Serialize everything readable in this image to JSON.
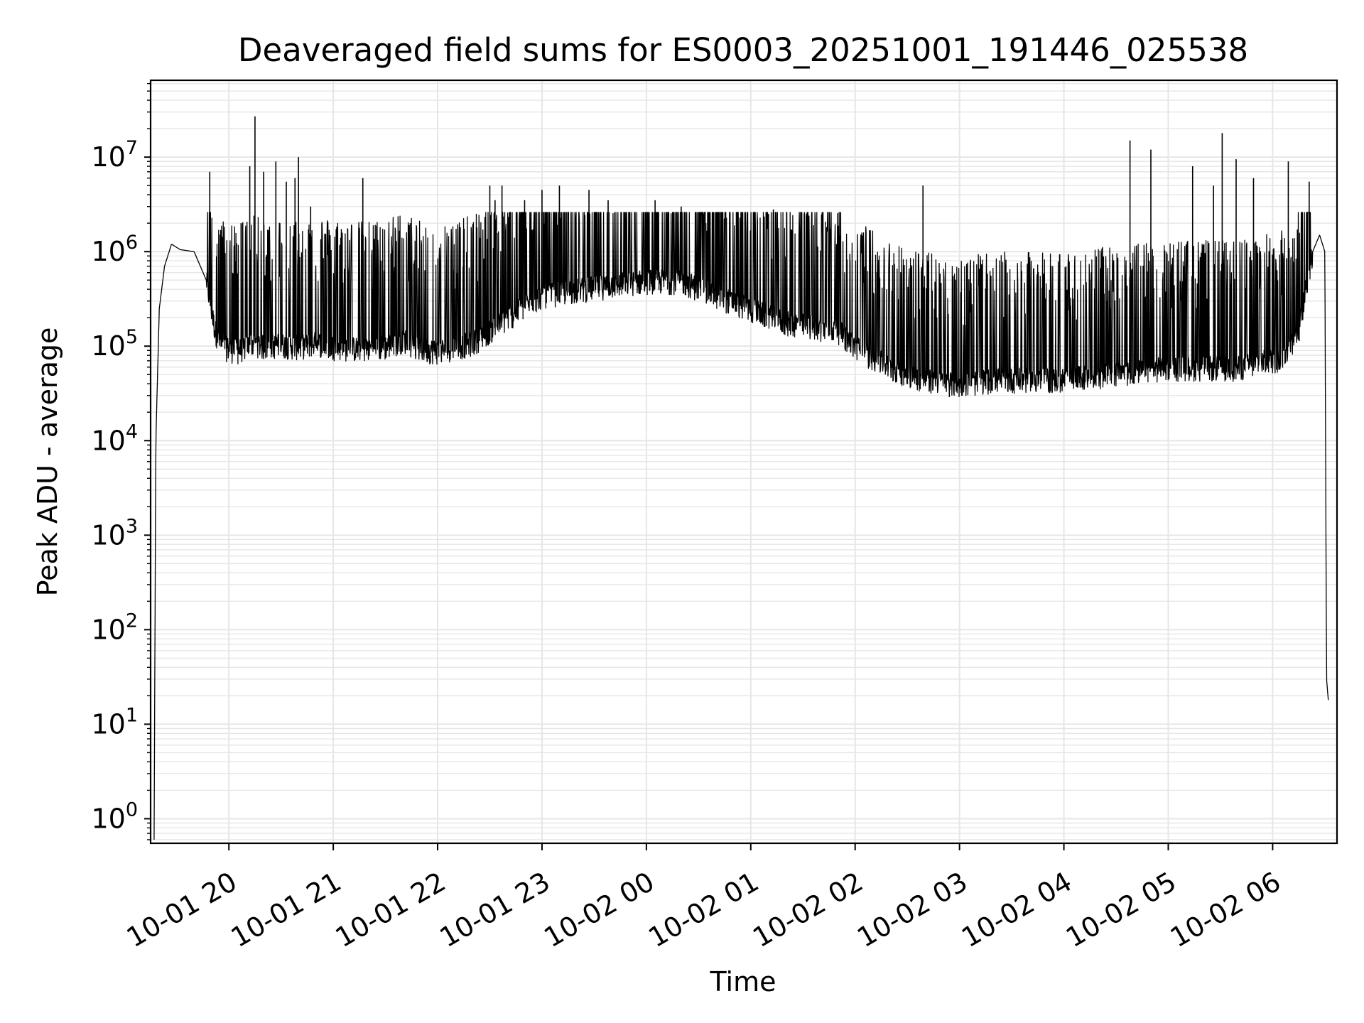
{
  "chart_data": {
    "type": "line",
    "title": "Deaveraged field sums for ES0003_20251001_191446_025538",
    "xlabel": "Time",
    "ylabel": "Peak ADU - average",
    "yscale": "log",
    "ylim": [
      0.55,
      65000000
    ],
    "xlim": [
      "2025-10-01 19:15",
      "2025-10-02 06:37"
    ],
    "grid": true,
    "line_color": "#000000",
    "grid_color": "#e6e6e6",
    "x_ticks": [
      {
        "t": "2025-10-01 20:00",
        "label": "10-01 20"
      },
      {
        "t": "2025-10-01 21:00",
        "label": "10-01 21"
      },
      {
        "t": "2025-10-01 22:00",
        "label": "10-01 22"
      },
      {
        "t": "2025-10-01 23:00",
        "label": "10-01 23"
      },
      {
        "t": "2025-10-02 00:00",
        "label": "10-02 00"
      },
      {
        "t": "2025-10-02 01:00",
        "label": "10-02 01"
      },
      {
        "t": "2025-10-02 02:00",
        "label": "10-02 02"
      },
      {
        "t": "2025-10-02 03:00",
        "label": "10-02 03"
      },
      {
        "t": "2025-10-02 04:00",
        "label": "10-02 04"
      },
      {
        "t": "2025-10-02 05:00",
        "label": "10-02 05"
      },
      {
        "t": "2025-10-02 06:00",
        "label": "10-02 06"
      }
    ],
    "y_ticks": [
      {
        "value": 1,
        "base": "10",
        "exp": "0"
      },
      {
        "value": 10,
        "base": "10",
        "exp": "1"
      },
      {
        "value": 100,
        "base": "10",
        "exp": "2"
      },
      {
        "value": 1000,
        "base": "10",
        "exp": "3"
      },
      {
        "value": 10000,
        "base": "10",
        "exp": "4"
      },
      {
        "value": 100000,
        "base": "10",
        "exp": "5"
      },
      {
        "value": 1000000,
        "base": "10",
        "exp": "6"
      },
      {
        "value": 10000000,
        "base": "10",
        "exp": "7"
      }
    ],
    "series": [
      {
        "x": [
          "2025-10-01 19:17",
          "2025-10-01 19:18",
          "2025-10-01 19:20",
          "2025-10-01 19:23",
          "2025-10-01 19:27",
          "2025-10-01 19:32",
          "2025-10-01 19:40",
          "2025-10-01 19:47",
          "2025-10-01 19:52",
          "2025-10-01 19:56",
          "2025-10-01 20:05",
          "2025-10-01 20:10",
          "2025-10-01 20:15",
          "2025-10-01 20:20",
          "2025-10-01 20:30",
          "2025-10-01 20:40",
          "2025-10-01 20:50",
          "2025-10-01 21:00",
          "2025-10-01 21:15",
          "2025-10-01 21:30",
          "2025-10-01 21:40",
          "2025-10-01 21:50",
          "2025-10-01 22:00",
          "2025-10-01 22:20",
          "2025-10-01 22:40",
          "2025-10-01 23:00",
          "2025-10-01 23:20",
          "2025-10-01 23:40",
          "2025-10-02 00:00",
          "2025-10-02 00:20",
          "2025-10-02 00:40",
          "2025-10-02 01:00",
          "2025-10-02 01:20",
          "2025-10-02 01:40",
          "2025-10-02 01:50",
          "2025-10-02 02:00",
          "2025-10-02 02:20",
          "2025-10-02 02:40",
          "2025-10-02 03:00",
          "2025-10-02 03:20",
          "2025-10-02 03:40",
          "2025-10-02 04:00",
          "2025-10-02 04:20",
          "2025-10-02 04:40",
          "2025-10-02 05:00",
          "2025-10-02 05:20",
          "2025-10-02 05:40",
          "2025-10-02 05:55",
          "2025-10-02 06:05",
          "2025-10-02 06:15",
          "2025-10-02 06:20",
          "2025-10-02 06:23",
          "2025-10-02 06:27",
          "2025-10-02 06:30",
          "2025-10-02 06:31",
          "2025-10-02 06:32"
        ],
        "y": [
          0.6,
          10000,
          250000,
          700000,
          1200000,
          1050000,
          1000000,
          500000,
          150000,
          100000,
          90000,
          100000,
          110000,
          100000,
          105000,
          100000,
          110000,
          100000,
          95000,
          100000,
          120000,
          95000,
          90000,
          110000,
          200000,
          350000,
          400000,
          450000,
          500000,
          500000,
          350000,
          250000,
          180000,
          160000,
          150000,
          100000,
          60000,
          45000,
          40000,
          45000,
          45000,
          45000,
          50000,
          55000,
          60000,
          60000,
          60000,
          70000,
          75000,
          150000,
          500000,
          1000000,
          1500000,
          1000000,
          30,
          18
        ],
        "style": "noisy"
      }
    ],
    "spikes": [
      {
        "t": "2025-10-01 19:49",
        "y": 7000000
      },
      {
        "t": "2025-10-01 20:07",
        "y": 2000000
      },
      {
        "t": "2025-10-01 20:12",
        "y": 8000000
      },
      {
        "t": "2025-10-01 20:15",
        "y": 27000000
      },
      {
        "t": "2025-10-01 20:20",
        "y": 7000000
      },
      {
        "t": "2025-10-01 20:27",
        "y": 9000000
      },
      {
        "t": "2025-10-01 20:33",
        "y": 5500000
      },
      {
        "t": "2025-10-01 20:38",
        "y": 6000000
      },
      {
        "t": "2025-10-01 20:40",
        "y": 10000000
      },
      {
        "t": "2025-10-01 20:47",
        "y": 3000000
      },
      {
        "t": "2025-10-01 21:17",
        "y": 6000000
      },
      {
        "t": "2025-10-01 22:30",
        "y": 5000000
      },
      {
        "t": "2025-10-01 22:33",
        "y": 3500000
      },
      {
        "t": "2025-10-01 22:37",
        "y": 5000000
      },
      {
        "t": "2025-10-01 22:50",
        "y": 3500000
      },
      {
        "t": "2025-10-01 23:00",
        "y": 4500000
      },
      {
        "t": "2025-10-01 23:10",
        "y": 5000000
      },
      {
        "t": "2025-10-01 23:27",
        "y": 4500000
      },
      {
        "t": "2025-10-01 23:38",
        "y": 3500000
      },
      {
        "t": "2025-10-02 00:05",
        "y": 3500000
      },
      {
        "t": "2025-10-02 00:20",
        "y": 3000000
      },
      {
        "t": "2025-10-02 01:13",
        "y": 2800000
      },
      {
        "t": "2025-10-02 02:39",
        "y": 5000000
      },
      {
        "t": "2025-10-02 04:38",
        "y": 15000000
      },
      {
        "t": "2025-10-02 04:50",
        "y": 12000000
      },
      {
        "t": "2025-10-02 05:14",
        "y": 8000000
      },
      {
        "t": "2025-10-02 05:26",
        "y": 5000000
      },
      {
        "t": "2025-10-02 05:31",
        "y": 18000000
      },
      {
        "t": "2025-10-02 05:39",
        "y": 9500000
      },
      {
        "t": "2025-10-02 05:49",
        "y": 6000000
      },
      {
        "t": "2025-10-02 06:09",
        "y": 9000000
      },
      {
        "t": "2025-10-02 06:21",
        "y": 5500000
      }
    ]
  }
}
